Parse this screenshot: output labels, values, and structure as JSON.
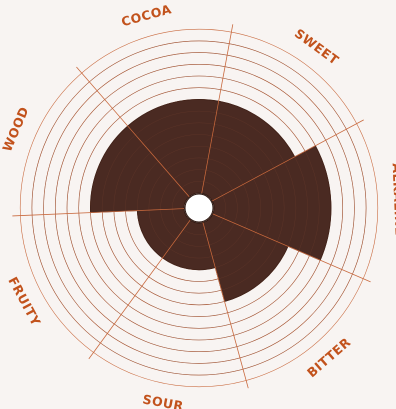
{
  "chart_data": {
    "type": "polar-area",
    "categories": [
      "COCOA",
      "SWEET",
      "ALKALINE",
      "BITTER",
      "SOUR",
      "FRUITY",
      "WOOD"
    ],
    "values": [
      8,
      8,
      10,
      7,
      4,
      4,
      8
    ],
    "rlim": [
      0,
      14
    ],
    "rings": 14,
    "grid": true,
    "legend": "none",
    "colors": {
      "fill": "#4a2a22",
      "fill_stroke": "#2b1610",
      "grid": "#c96a3f",
      "label": "#c2521c",
      "center": "#ffffff"
    }
  }
}
